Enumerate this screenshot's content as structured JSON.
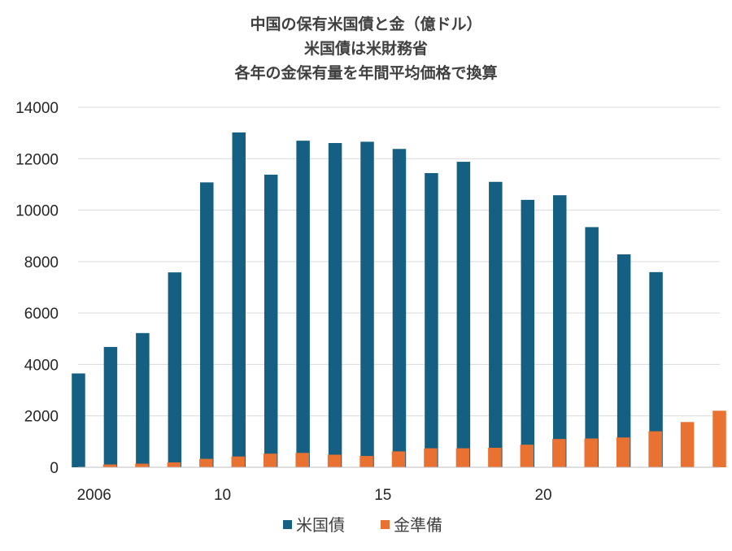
{
  "chart_data": {
    "type": "bar",
    "title": [
      "中国の保有米国債と金（億ドル）",
      "米国債は米財務省",
      "各年の金保有量を年間平均価格で換算"
    ],
    "xlabel": "",
    "ylabel": "",
    "ylim": [
      0,
      14000
    ],
    "yticks": [
      "0",
      "2000",
      "4000",
      "6000",
      "8000",
      "10000",
      "12000",
      "14000"
    ],
    "ytick_values": [
      0,
      2000,
      4000,
      6000,
      8000,
      10000,
      12000,
      14000
    ],
    "categories": [
      "2006",
      "2007",
      "2008",
      "2009",
      "2010",
      "2011",
      "2012",
      "2013",
      "2014",
      "2015",
      "2016",
      "2017",
      "2018",
      "2019",
      "2020",
      "2021",
      "2022",
      "2023",
      "2024",
      "2025"
    ],
    "xtick_labels": [
      {
        "label": "2006",
        "index": 0
      },
      {
        "label": "10",
        "index": 4
      },
      {
        "label": "15",
        "index": 9
      },
      {
        "label": "20",
        "index": 14
      }
    ],
    "series": [
      {
        "name": "米国債",
        "color": "#156082",
        "values": [
          3650,
          4680,
          5220,
          7580,
          11080,
          13020,
          11380,
          12700,
          12610,
          12660,
          12380,
          11440,
          11880,
          11100,
          10400,
          10580,
          9340,
          8280,
          7590,
          null
        ]
      },
      {
        "name": "金準備",
        "color": "#E97132",
        "values": [
          110,
          140,
          190,
          330,
          420,
          530,
          560,
          490,
          440,
          620,
          740,
          740,
          760,
          880,
          1100,
          1120,
          1160,
          1400,
          1760,
          2200
        ]
      }
    ],
    "legend": "bottom",
    "grid": true
  }
}
